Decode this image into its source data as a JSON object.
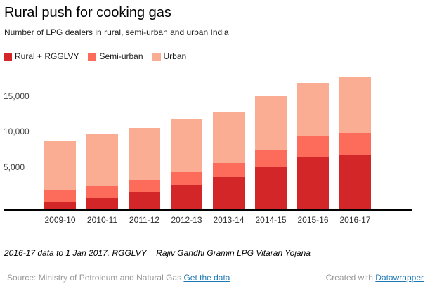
{
  "header": {
    "title": "Rural push for cooking gas",
    "subtitle": "Number of LPG dealers in rural, semi-urban and urban India"
  },
  "legend": [
    {
      "label": "Rural + RGGLVY",
      "color": "#d22628"
    },
    {
      "label": "Semi-urban",
      "color": "#fd6b5a"
    },
    {
      "label": "Urban",
      "color": "#fbad93"
    }
  ],
  "chart_data": {
    "type": "bar",
    "stacked": true,
    "title": "Rural push for cooking gas",
    "subtitle": "Number of LPG dealers in rural, semi-urban and urban India",
    "xlabel": "",
    "ylabel": "",
    "categories": [
      "2009-10",
      "2010-11",
      "2011-12",
      "2012-13",
      "2013-14",
      "2014-15",
      "2015-16",
      "2016-17"
    ],
    "series": [
      {
        "name": "Rural + RGGLVY",
        "color": "#d22628",
        "values": [
          1100,
          1700,
          2500,
          3500,
          4600,
          6100,
          7450,
          7750
        ]
      },
      {
        "name": "Semi-urban",
        "color": "#fd6b5a",
        "values": [
          1550,
          1550,
          1700,
          1800,
          1950,
          2300,
          2900,
          3050
        ]
      },
      {
        "name": "Urban",
        "color": "#fbad93",
        "values": [
          7050,
          7350,
          7350,
          7400,
          7300,
          7550,
          7550,
          7850
        ]
      }
    ],
    "totals": [
      9700,
      10600,
      11550,
      12700,
      13850,
      15950,
      17900,
      18650
    ],
    "ylim": [
      0,
      19000
    ],
    "yticks": [
      5000,
      10000,
      15000
    ],
    "ytick_labels": [
      "5,000",
      "10,000",
      "15,000"
    ],
    "grid": true,
    "legend_position": "top",
    "gridline_color": "#dedede",
    "baseline_color": "#000000"
  },
  "footer": {
    "note": "2016-17 data to 1 Jan 2017. RGGLVY = Rajiv Gandhi Gramin LPG Vitaran Yojana",
    "source_prefix": "Source: Ministry of Petroleum and Natural Gas ",
    "source_link": "Get the data",
    "credit_prefix": "Created with ",
    "credit_link": "Datawrapper"
  }
}
